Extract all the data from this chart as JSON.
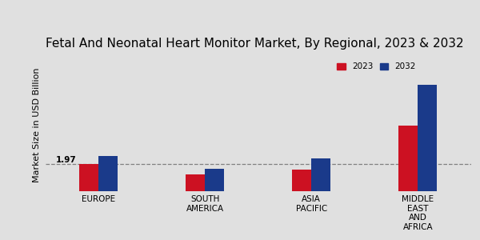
{
  "title": "Fetal And Neonatal Heart Monitor Market, By Regional, 2023 & 2032",
  "ylabel": "Market Size in USD Billion",
  "categories": [
    "EUROPE",
    "SOUTH\nAMERICA",
    "ASIA\nPACIFIC",
    "MIDDLE\nEAST\nAND\nAFRICA"
  ],
  "values_2023": [
    1.97,
    1.2,
    1.55,
    4.8
  ],
  "values_2032": [
    2.55,
    1.6,
    2.4,
    7.8
  ],
  "color_2023": "#cc1122",
  "color_2032": "#1a3a8a",
  "annotation_value": "1.97",
  "annotation_category_index": 0,
  "bar_width": 0.18,
  "dashed_line_y": 1.97,
  "background_color": "#e0e0e0",
  "legend_labels": [
    "2023",
    "2032"
  ],
  "title_fontsize": 11,
  "axis_label_fontsize": 8,
  "tick_fontsize": 7.5
}
